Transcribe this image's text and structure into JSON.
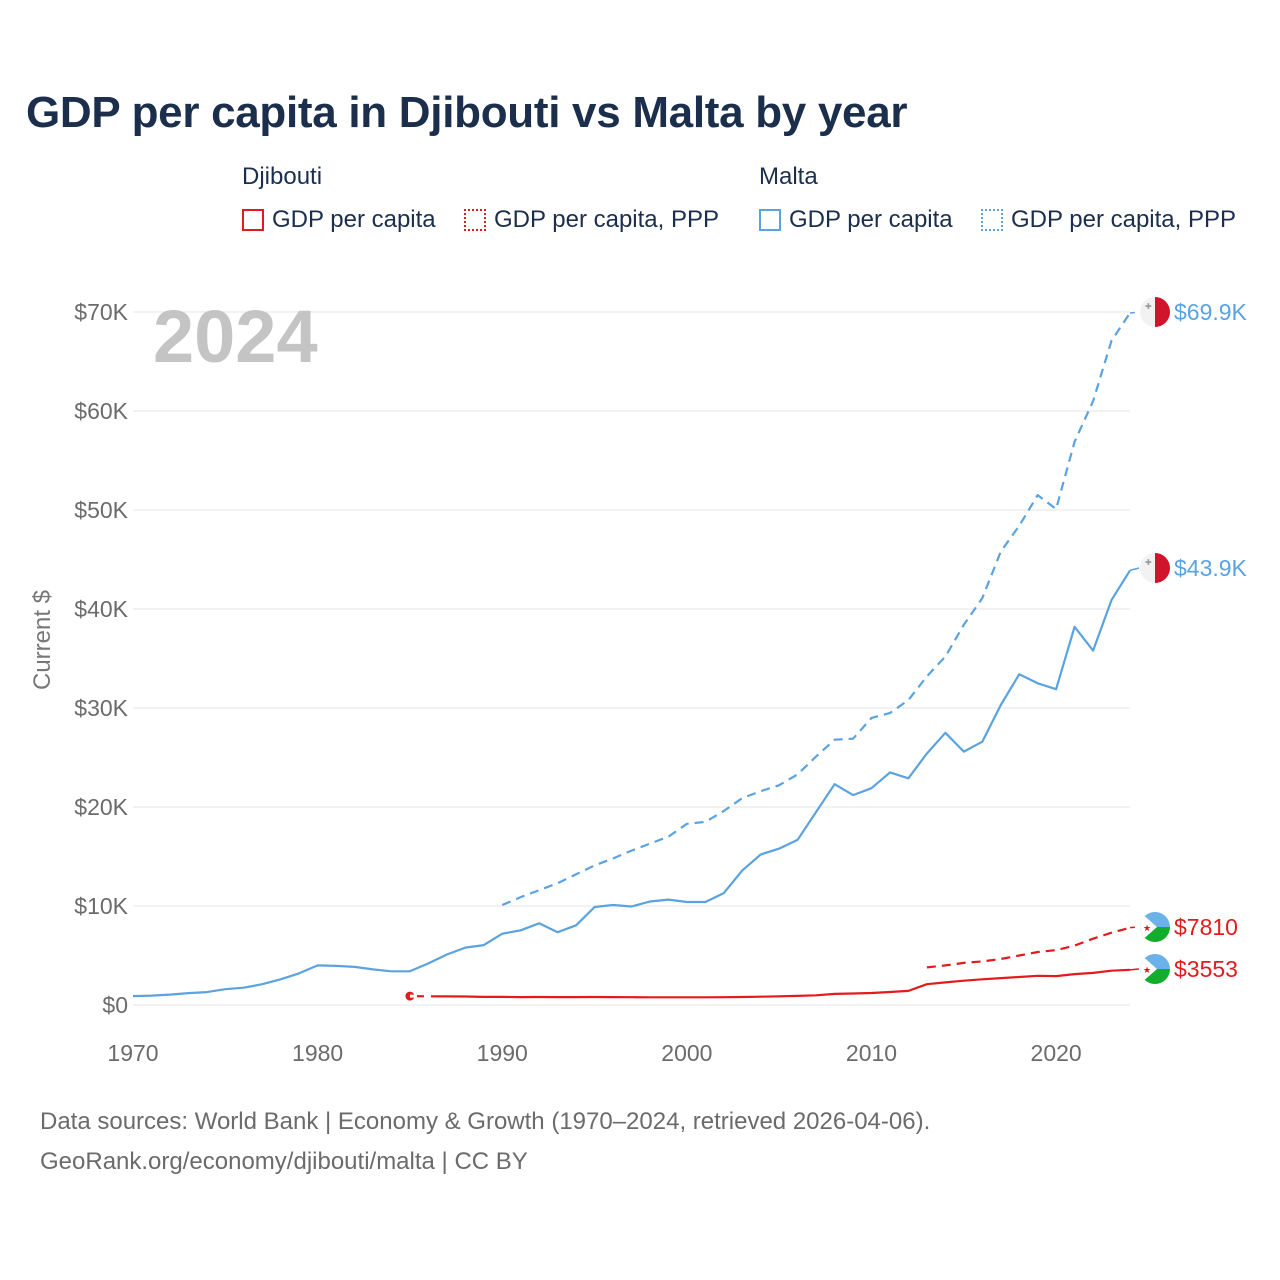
{
  "title": "GDP per capita in Djibouti vs Malta by year",
  "legend": {
    "groups": [
      {
        "name": "Djibouti",
        "color": "#e41a1c",
        "items": [
          {
            "label": "GDP per capita",
            "style": "solid"
          },
          {
            "label": "GDP per capita, PPP",
            "style": "dotted"
          }
        ]
      },
      {
        "name": "Malta",
        "color": "#5aa3e0",
        "items": [
          {
            "label": "GDP per capita",
            "style": "solid"
          },
          {
            "label": "GDP per capita, PPP",
            "style": "dotted"
          }
        ]
      }
    ]
  },
  "footer": {
    "line1": "Data sources: World Bank | Economy & Growth (1970–2024, retrieved 2026-04-06).",
    "line2": "GeoRank.org/economy/djibouti/malta | CC BY"
  },
  "chart_data": {
    "type": "line",
    "year_label": "2024",
    "ylabel": "Current $",
    "xlim": [
      1970,
      2024
    ],
    "ylim": [
      0,
      70000
    ],
    "x_ticks": [
      1970,
      1980,
      1990,
      2000,
      2010,
      2020
    ],
    "y_ticks": [
      {
        "value": 0,
        "label": "$0"
      },
      {
        "value": 10000,
        "label": "$10K"
      },
      {
        "value": 20000,
        "label": "$20K"
      },
      {
        "value": 30000,
        "label": "$30K"
      },
      {
        "value": 40000,
        "label": "$40K"
      },
      {
        "value": 50000,
        "label": "$50K"
      },
      {
        "value": 60000,
        "label": "$60K"
      },
      {
        "value": 70000,
        "label": "$70K"
      }
    ],
    "series": [
      {
        "name": "Malta GDP per capita, PPP",
        "country": "Malta",
        "color": "#5aa3e0",
        "dash": "dashed",
        "end_label": "$69.9K",
        "flag": "malta",
        "points": [
          [
            1990,
            10100
          ],
          [
            1991,
            10900
          ],
          [
            1992,
            11600
          ],
          [
            1993,
            12300
          ],
          [
            1994,
            13200
          ],
          [
            1995,
            14100
          ],
          [
            1996,
            14800
          ],
          [
            1997,
            15600
          ],
          [
            1998,
            16300
          ],
          [
            1999,
            17000
          ],
          [
            2000,
            18300
          ],
          [
            2001,
            18500
          ],
          [
            2002,
            19600
          ],
          [
            2003,
            20900
          ],
          [
            2004,
            21600
          ],
          [
            2005,
            22200
          ],
          [
            2006,
            23300
          ],
          [
            2007,
            25100
          ],
          [
            2008,
            26800
          ],
          [
            2009,
            26900
          ],
          [
            2010,
            29000
          ],
          [
            2011,
            29500
          ],
          [
            2012,
            30800
          ],
          [
            2013,
            33200
          ],
          [
            2014,
            35200
          ],
          [
            2015,
            38400
          ],
          [
            2016,
            41100
          ],
          [
            2017,
            45800
          ],
          [
            2018,
            48400
          ],
          [
            2019,
            51500
          ],
          [
            2020,
            50100
          ],
          [
            2021,
            56900
          ],
          [
            2022,
            61000
          ],
          [
            2023,
            67100
          ],
          [
            2024,
            69900
          ]
        ]
      },
      {
        "name": "Malta GDP per capita",
        "country": "Malta",
        "color": "#5aa3e0",
        "dash": "solid",
        "end_label": "$43.9K",
        "flag": "malta",
        "points": [
          [
            1970,
            900
          ],
          [
            1971,
            950
          ],
          [
            1972,
            1050
          ],
          [
            1973,
            1200
          ],
          [
            1974,
            1300
          ],
          [
            1975,
            1600
          ],
          [
            1976,
            1750
          ],
          [
            1977,
            2100
          ],
          [
            1978,
            2600
          ],
          [
            1979,
            3200
          ],
          [
            1980,
            4000
          ],
          [
            1981,
            3950
          ],
          [
            1982,
            3850
          ],
          [
            1983,
            3600
          ],
          [
            1984,
            3400
          ],
          [
            1985,
            3400
          ],
          [
            1986,
            4200
          ],
          [
            1987,
            5100
          ],
          [
            1988,
            5800
          ],
          [
            1989,
            6050
          ],
          [
            1990,
            7200
          ],
          [
            1991,
            7550
          ],
          [
            1992,
            8250
          ],
          [
            1993,
            7350
          ],
          [
            1994,
            8050
          ],
          [
            1995,
            9900
          ],
          [
            1996,
            10100
          ],
          [
            1997,
            9950
          ],
          [
            1998,
            10450
          ],
          [
            1999,
            10650
          ],
          [
            2000,
            10400
          ],
          [
            2001,
            10400
          ],
          [
            2002,
            11300
          ],
          [
            2003,
            13600
          ],
          [
            2004,
            15200
          ],
          [
            2005,
            15800
          ],
          [
            2006,
            16700
          ],
          [
            2007,
            19500
          ],
          [
            2008,
            22300
          ],
          [
            2009,
            21200
          ],
          [
            2010,
            21900
          ],
          [
            2011,
            23500
          ],
          [
            2012,
            22900
          ],
          [
            2013,
            25400
          ],
          [
            2014,
            27500
          ],
          [
            2015,
            25600
          ],
          [
            2016,
            26600
          ],
          [
            2017,
            30300
          ],
          [
            2018,
            33400
          ],
          [
            2019,
            32500
          ],
          [
            2020,
            31900
          ],
          [
            2021,
            38200
          ],
          [
            2022,
            35800
          ],
          [
            2023,
            40900
          ],
          [
            2024,
            43900
          ]
        ]
      },
      {
        "name": "Djibouti GDP per capita, PPP",
        "country": "Djibouti",
        "color": "#e41a1c",
        "dash": "dashed",
        "end_label": "$7810",
        "flag": "djibouti",
        "points": [
          [
            2013,
            3800
          ],
          [
            2014,
            4000
          ],
          [
            2015,
            4250
          ],
          [
            2016,
            4400
          ],
          [
            2017,
            4650
          ],
          [
            2018,
            5000
          ],
          [
            2019,
            5350
          ],
          [
            2020,
            5550
          ],
          [
            2021,
            6000
          ],
          [
            2022,
            6700
          ],
          [
            2023,
            7300
          ],
          [
            2024,
            7810
          ]
        ]
      },
      {
        "name": "Djibouti GDP per capita",
        "country": "Djibouti",
        "color": "#e41a1c",
        "dash": "solid",
        "end_label": "$3553",
        "flag": "djibouti",
        "start_dot": true,
        "points": [
          [
            1985,
            900
          ],
          [
            1986,
            880
          ],
          [
            1987,
            870
          ],
          [
            1988,
            860
          ],
          [
            1989,
            820
          ],
          [
            1990,
            820
          ],
          [
            1991,
            800
          ],
          [
            1992,
            810
          ],
          [
            1993,
            800
          ],
          [
            1994,
            800
          ],
          [
            1995,
            810
          ],
          [
            1996,
            800
          ],
          [
            1997,
            790
          ],
          [
            1998,
            780
          ],
          [
            1999,
            780
          ],
          [
            2000,
            780
          ],
          [
            2001,
            780
          ],
          [
            2002,
            790
          ],
          [
            2003,
            810
          ],
          [
            2004,
            840
          ],
          [
            2005,
            880
          ],
          [
            2006,
            920
          ],
          [
            2007,
            980
          ],
          [
            2008,
            1120
          ],
          [
            2009,
            1160
          ],
          [
            2010,
            1210
          ],
          [
            2011,
            1310
          ],
          [
            2012,
            1420
          ],
          [
            2013,
            2100
          ],
          [
            2014,
            2280
          ],
          [
            2015,
            2450
          ],
          [
            2016,
            2600
          ],
          [
            2017,
            2720
          ],
          [
            2018,
            2830
          ],
          [
            2019,
            2950
          ],
          [
            2020,
            2920
          ],
          [
            2021,
            3120
          ],
          [
            2022,
            3240
          ],
          [
            2023,
            3460
          ],
          [
            2024,
            3553
          ]
        ]
      }
    ]
  }
}
